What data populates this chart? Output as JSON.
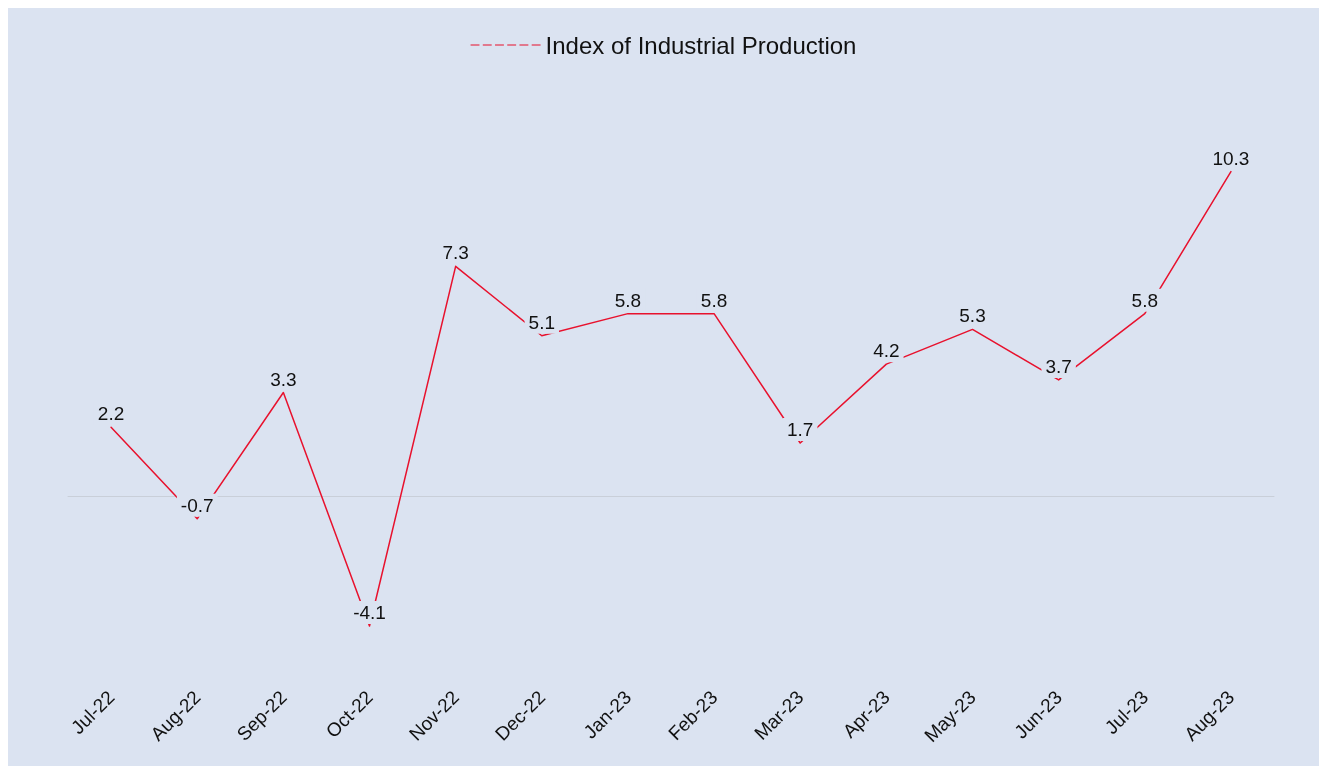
{
  "chart_data": {
    "type": "line",
    "categories": [
      "Jul-22",
      "Aug-22",
      "Sep-22",
      "Oct-22",
      "Nov-22",
      "Dec-22",
      "Jan-23",
      "Feb-23",
      "Mar-23",
      "Apr-23",
      "May-23",
      "Jun-23",
      "Jul-23",
      "Aug-23"
    ],
    "series": [
      {
        "name": "Index of Industrial Production",
        "color": "#e8112d",
        "values": [
          2.2,
          -0.7,
          3.3,
          -4.1,
          7.3,
          5.1,
          5.8,
          5.8,
          1.7,
          4.2,
          5.3,
          3.7,
          5.8,
          10.3
        ]
      }
    ],
    "data_labels": true,
    "legend": "top",
    "grid": false,
    "tick_labels": "x",
    "marker": "none",
    "line_style": "solid"
  }
}
